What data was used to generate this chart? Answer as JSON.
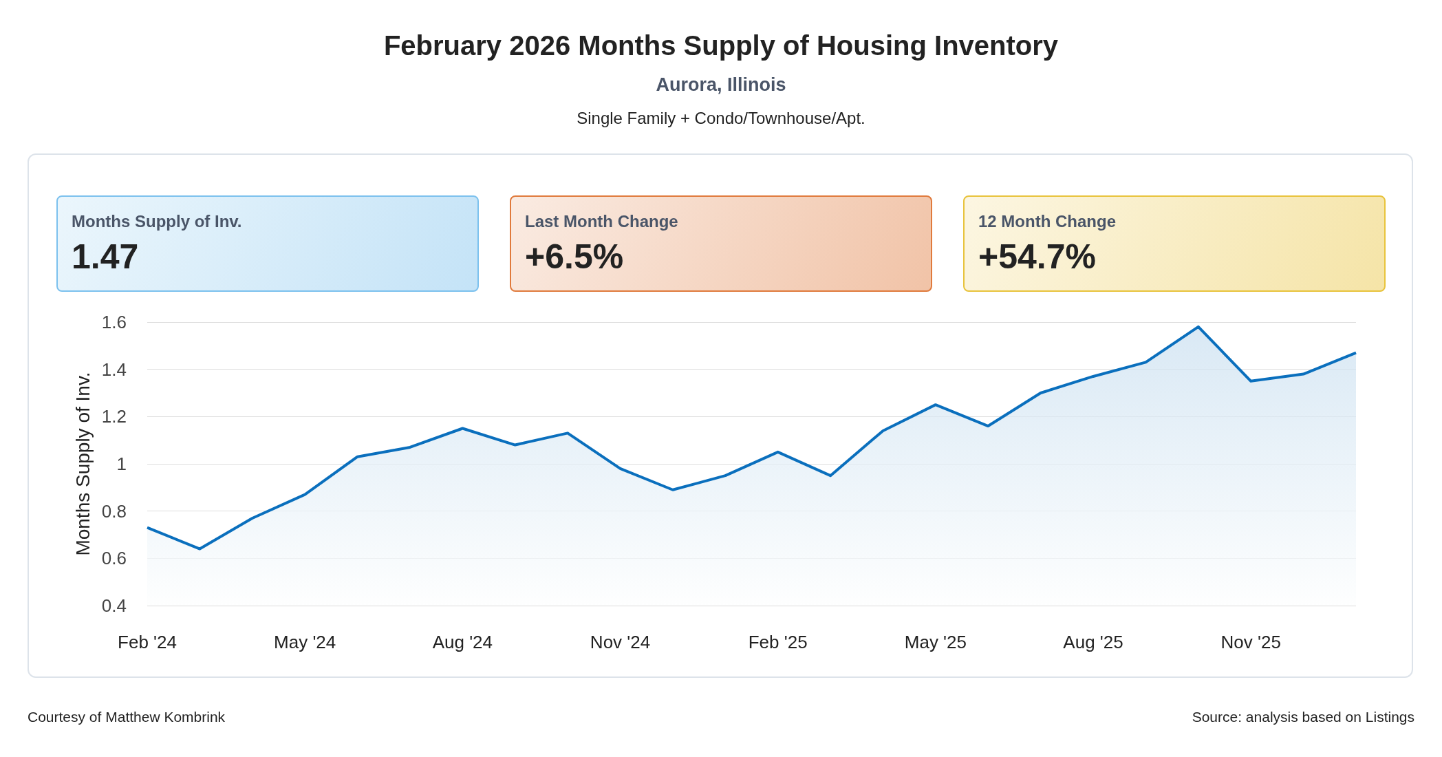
{
  "chart_data": [
    {
      "type": "other",
      "title": "February 2026 Months Supply of Housing Inventory",
      "subtitle": "Aurora, Illinois",
      "annotations": [
        "Single Family + Condo/Townhouse/Apt."
      ],
      "categories": [
        "Months Supply of Inv.",
        "Last Month Change",
        "12 Month Change"
      ],
      "value_labels": [
        "1.47",
        "+6.5%",
        "+54.7%"
      ],
      "colors": [
        "#7cc1ee",
        "#e07a3c",
        "#e8c33c"
      ]
    },
    {
      "type": "area",
      "ylabel": "Months Supply of Inv.",
      "categories": [
        "Feb '24",
        null,
        null,
        "May '24",
        null,
        null,
        "Aug '24",
        null,
        null,
        "Nov '24",
        null,
        null,
        "Feb '25",
        null,
        null,
        "May '25",
        null,
        null,
        "Aug '25",
        null,
        null,
        "Nov '25",
        null,
        null
      ],
      "series": [
        {
          "color": "#0a6fbd",
          "values": [
            0.73,
            0.64,
            0.77,
            0.87,
            1.03,
            1.07,
            1.15,
            1.08,
            1.13,
            0.98,
            0.89,
            0.95,
            1.05,
            0.95,
            1.14,
            1.25,
            1.16,
            1.3,
            1.37,
            1.43,
            1.58,
            1.35,
            1.38,
            1.47
          ]
        }
      ],
      "ylim": [
        0.4,
        1.6
      ],
      "yticks": [
        0.4,
        0.6,
        0.8,
        1,
        1.2,
        1.4,
        1.6
      ],
      "grid": "y",
      "marker": "none",
      "line_style": "solid",
      "annotations": [
        "Courtesy of Matthew Kombrink",
        "Source: analysis based on Listings"
      ]
    }
  ]
}
